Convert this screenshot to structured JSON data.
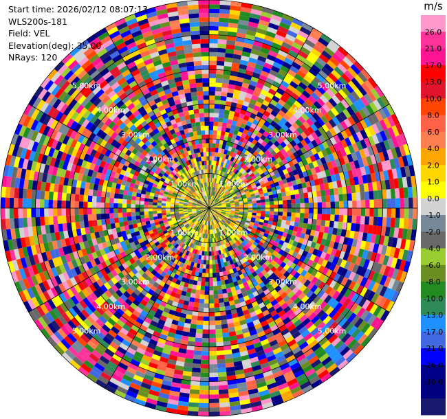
{
  "header": {
    "start_time": "Start time: 2026/02/12 08:07:13",
    "instrument": "WLS200s-181",
    "field": "Field: VEL",
    "elevation": "Elevation(deg): 35.00",
    "nrays": "NRays: 120"
  },
  "chart_data": {
    "type": "heatmap",
    "projection": "polar (PPI scan)",
    "rays": 120,
    "max_range_km": 6.0,
    "range_ring_labels": [
      "1.00km",
      "2.00km",
      "3.00km",
      "4.00km",
      "5.00km"
    ],
    "colorbar": {
      "unit": "m/s",
      "ticks": [
        "26.0",
        "21.0",
        "17.0",
        "13.0",
        "10.0",
        "8.0",
        "6.0",
        "4.0",
        "2.0",
        "1.0",
        "0.0",
        "-1.0",
        "-2.0",
        "-4.0",
        "-6.0",
        "-8.0",
        "-10.0",
        "-13.0",
        "-17.0",
        "-21.0",
        "-26.0",
        "-30.0"
      ],
      "colors": [
        "#ff99cc",
        "#ff3399",
        "#ff1493",
        "#ff0000",
        "#e2142c",
        "#ff4500",
        "#ff6347",
        "#ff7f50",
        "#ffa500",
        "#ffd700",
        "#ffff00",
        "#d3d3d3",
        "#778899",
        "#696969",
        "#9acd32",
        "#6b8e23",
        "#228b22",
        "#2e8b57",
        "#1e90ff",
        "#4169e1",
        "#0000ff",
        "#00008b",
        "#000080",
        "#191970"
      ]
    },
    "grid": true
  }
}
